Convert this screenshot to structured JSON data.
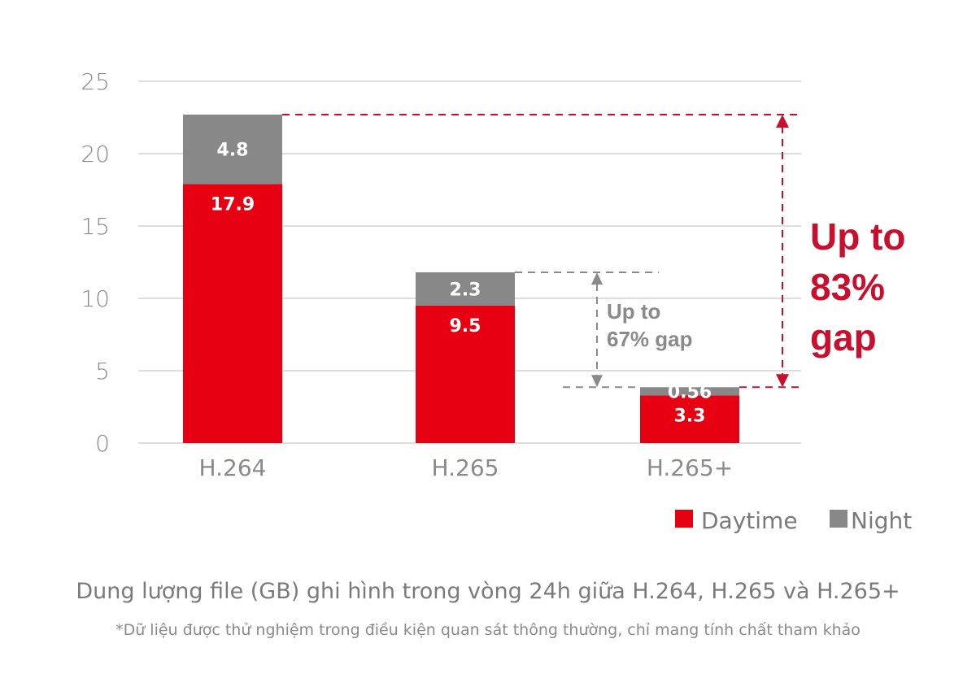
{
  "chart_data": {
    "type": "bar",
    "stacked": true,
    "categories": [
      "H.264",
      "H.265",
      "H.265+"
    ],
    "series": [
      {
        "name": "Daytime",
        "values": [
          17.9,
          9.5,
          3.3
        ],
        "color": "#e60012"
      },
      {
        "name": "Night",
        "values": [
          4.8,
          2.3,
          0.56
        ],
        "color": "#888888"
      }
    ],
    "value_labels": {
      "Daytime": [
        "17.9",
        "9.5",
        "3.3"
      ],
      "Night": [
        "4.8",
        "2.3",
        "0.56"
      ]
    },
    "ylim": [
      0,
      25
    ],
    "yticks": [
      "0",
      "5",
      "10",
      "15",
      "20",
      "25"
    ],
    "grid": true,
    "legend_position": "bottom-right",
    "annotations": {
      "small_gap": [
        "Up to",
        "67% gap"
      ],
      "big_gap": [
        "Up to",
        "83%",
        "gap"
      ]
    },
    "colors": {
      "gap_small": "#8a8a8a",
      "gap_big": "#c8102e",
      "grid": "#dddddd"
    }
  },
  "caption": {
    "title": "Dung lượng file (GB) ghi hình trong vòng 24h giữa H.264, H.265 và H.265+",
    "note": "*Dữ liệu được thử nghiệm trong điều kiện quan sát thông thường, chỉ mang tính chất tham khảo"
  }
}
